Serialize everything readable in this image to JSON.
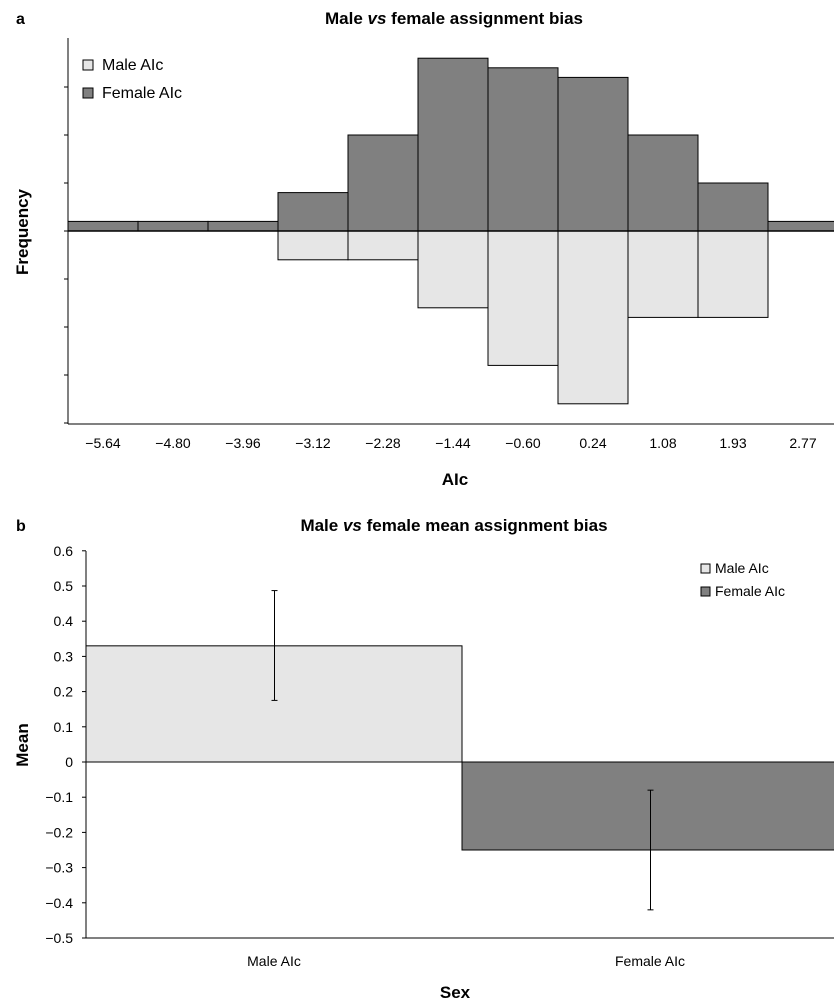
{
  "chart_data": [
    {
      "panel": "a",
      "type": "bar",
      "title_parts": [
        "Male ",
        "vs",
        " female assignment bias"
      ],
      "xlabel": "AIc",
      "ylabel": "Frequency",
      "categories": [
        "−5.64",
        "−4.80",
        "−3.96",
        "−3.12",
        "−2.28",
        "−1.44",
        "−0.60",
        "0.24",
        "1.08",
        "1.93",
        "2.77"
      ],
      "series": [
        {
          "name": "Female AIc",
          "color": "#808080",
          "direction": "up",
          "values": [
            1,
            1,
            1,
            4,
            10,
            18,
            17,
            16,
            10,
            5,
            1
          ]
        },
        {
          "name": "Male AIc",
          "color": "#e6e6e6",
          "direction": "down",
          "values": [
            0,
            0,
            0,
            3,
            3,
            8,
            14,
            18,
            9,
            9,
            0
          ]
        }
      ],
      "ylim": [
        -20,
        18
      ],
      "legend": "top-left",
      "grid": false
    },
    {
      "panel": "b",
      "type": "bar",
      "title_parts": [
        "Male ",
        "vs",
        " female mean assignment bias"
      ],
      "xlabel": "Sex",
      "ylabel": "Mean",
      "categories": [
        "Male AIc",
        "Female AIc"
      ],
      "series": [
        {
          "name": "Male AIc",
          "color": "#e6e6e6",
          "values": [
            0.33,
            null
          ],
          "error_low": [
            0.175,
            null
          ],
          "error_high": [
            0.487,
            null
          ]
        },
        {
          "name": "Female AIc",
          "color": "#808080",
          "values": [
            null,
            -0.25
          ],
          "error_low": [
            null,
            -0.42
          ],
          "error_high": [
            null,
            -0.08
          ]
        }
      ],
      "yticks": [
        "0.6",
        "0.5",
        "0.4",
        "0.3",
        "0.2",
        "0.1",
        "0",
        "−0.1",
        "−0.2",
        "−0.3",
        "−0.4",
        "−0.5"
      ],
      "ylim": [
        -0.5,
        0.6
      ],
      "legend": "top-right",
      "grid": false
    }
  ]
}
